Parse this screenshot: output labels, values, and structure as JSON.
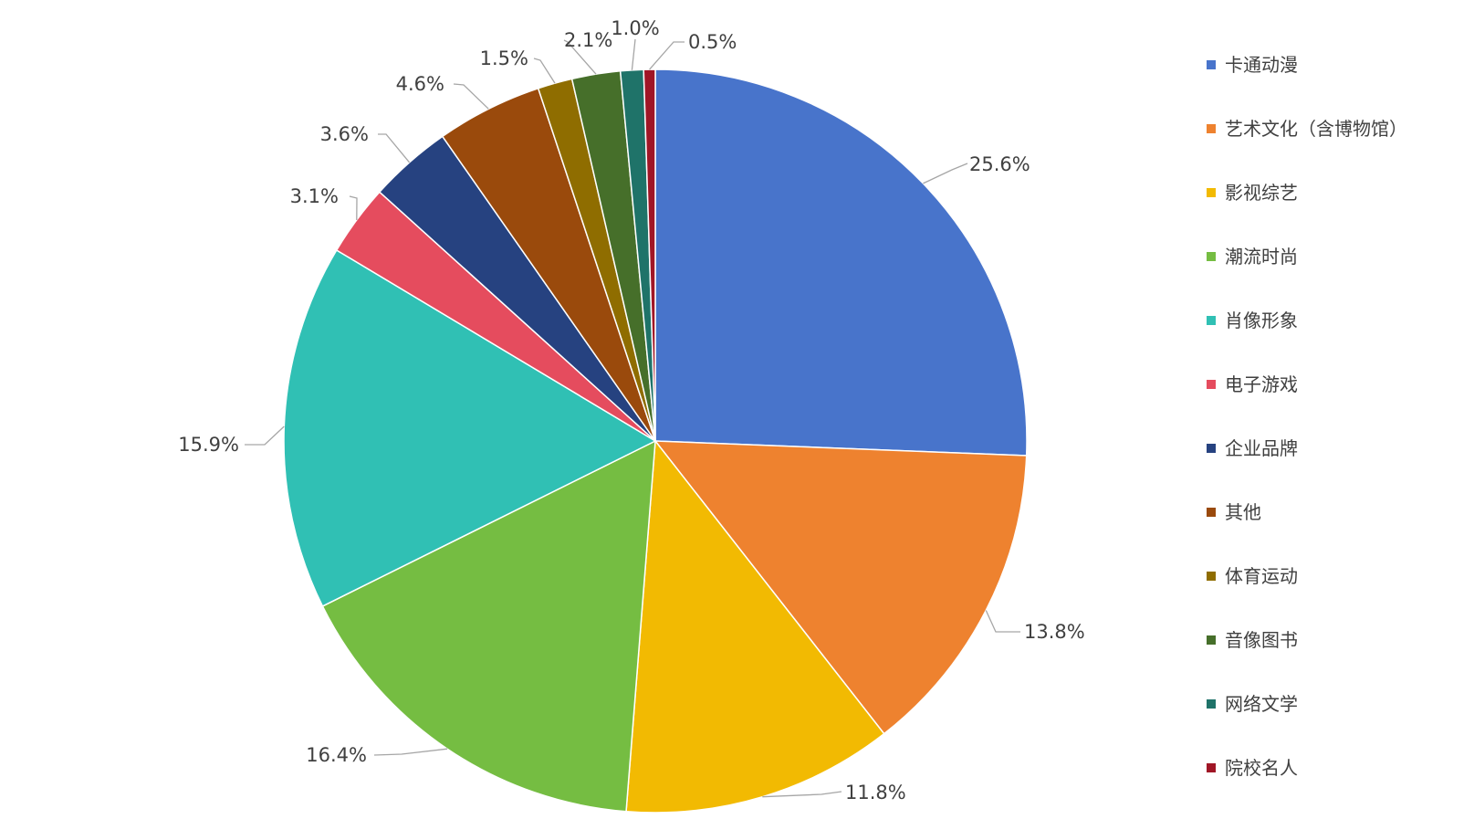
{
  "chart_data": {
    "type": "pie",
    "categories": [
      "卡通动漫",
      "艺术文化（含博物馆）",
      "影视综艺",
      "潮流时尚",
      "肖像形象",
      "电子游戏",
      "企业品牌",
      "其他",
      "体育运动",
      "音像图书",
      "网络文学",
      "院校名人"
    ],
    "values": [
      25.6,
      13.8,
      11.8,
      16.4,
      15.9,
      3.1,
      3.6,
      4.6,
      1.5,
      2.1,
      1.0,
      0.5
    ],
    "data_labels": [
      "25.6%",
      "13.8%",
      "11.8%",
      "16.4%",
      "15.9%",
      "3.1%",
      "3.6%",
      "4.6%",
      "1.5%",
      "2.1%",
      "1.0%",
      "0.5%"
    ],
    "colors": [
      "#4874CB",
      "#EE822F",
      "#F2BA02",
      "#75BD42",
      "#30C0B4",
      "#E54C5E",
      "#264280",
      "#9A4A0C",
      "#8F6D00",
      "#466F2A",
      "#1F7369",
      "#A01626"
    ],
    "legend_position": "right",
    "start_angle": "12 o'clock",
    "direction": "clockwise"
  }
}
